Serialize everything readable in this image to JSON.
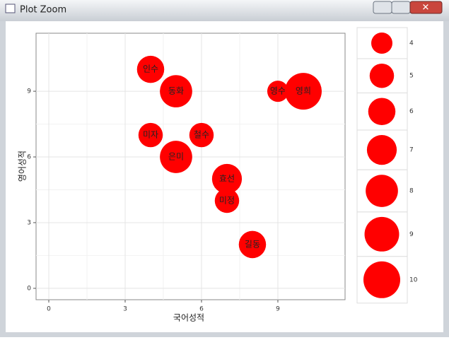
{
  "window": {
    "title": "Plot Zoom"
  },
  "chart_data": {
    "type": "bubble",
    "x_label": "국어성적",
    "y_label": "영어성적",
    "labels": [
      "인수",
      "동화",
      "영수",
      "영희",
      "미자",
      "철수",
      "은미",
      "효선",
      "미정",
      "길동"
    ],
    "x": [
      4,
      5,
      9,
      10,
      4,
      6,
      5,
      7,
      7,
      8
    ],
    "y": [
      10,
      9,
      9,
      9,
      7,
      7,
      6,
      5,
      4,
      2
    ],
    "sizes": [
      6,
      8,
      4,
      10,
      5,
      5,
      8,
      7,
      5,
      6
    ],
    "color": "#ff0000",
    "xlim": [
      -0.5,
      11.64
    ],
    "ylim": [
      -0.52,
      11.65
    ],
    "xticks": [
      0,
      3,
      6,
      9
    ],
    "yticks": [
      0,
      3,
      6,
      9
    ],
    "grid": true,
    "legend": {
      "position": "right",
      "sizes": [
        4,
        5,
        6,
        7,
        8,
        9,
        10
      ]
    }
  }
}
